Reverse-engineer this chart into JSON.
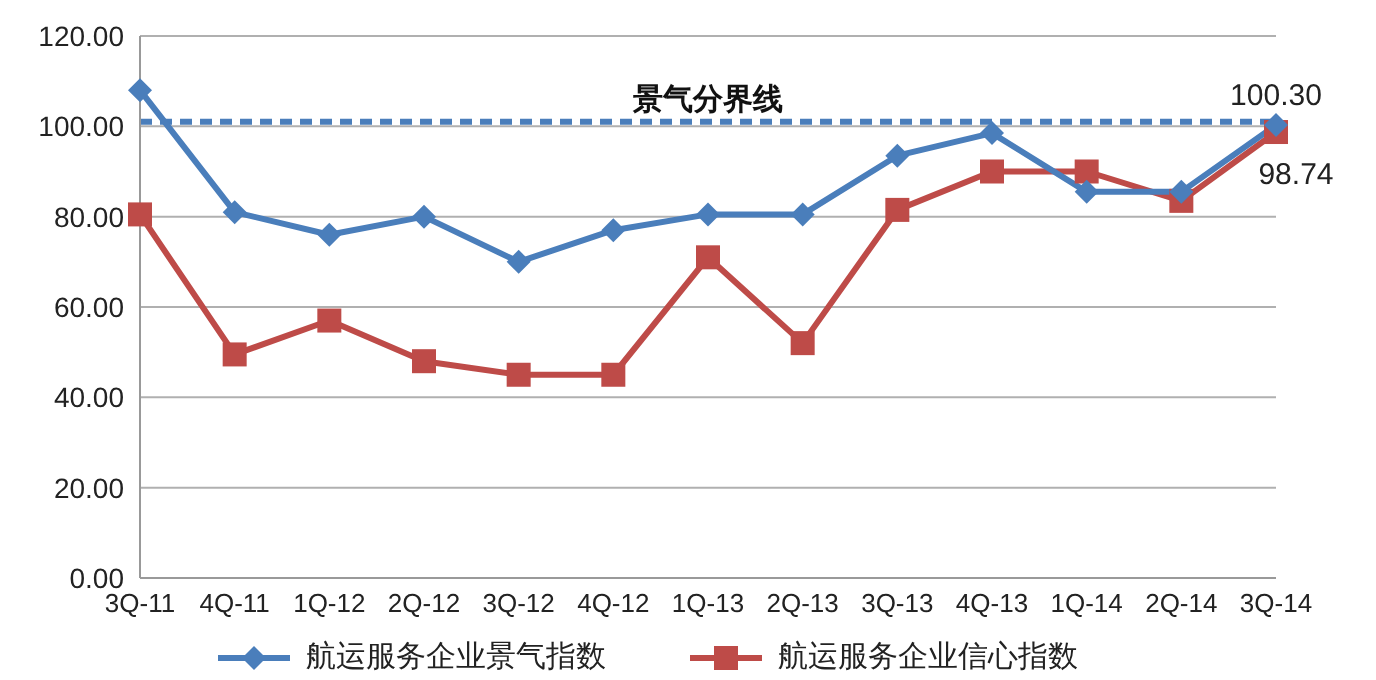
{
  "chart_data": {
    "type": "line",
    "categories": [
      "3Q-11",
      "4Q-11",
      "1Q-12",
      "2Q-12",
      "3Q-12",
      "4Q-12",
      "1Q-13",
      "2Q-13",
      "3Q-13",
      "4Q-13",
      "1Q-14",
      "2Q-14",
      "3Q-14"
    ],
    "series": [
      {
        "name": "航运服务企业景气指数",
        "color": "#4a7ebb",
        "marker": "diamond",
        "values": [
          108,
          81,
          76,
          80,
          70,
          77,
          80.5,
          80.5,
          93.5,
          98.5,
          85.5,
          85.5,
          100.3
        ],
        "value_labels": [
          null,
          null,
          null,
          null,
          null,
          null,
          null,
          null,
          null,
          null,
          null,
          null,
          "100.30"
        ]
      },
      {
        "name": "航运服务企业信心指数",
        "color": "#be4b48",
        "marker": "square",
        "values": [
          80.5,
          49.5,
          57,
          48,
          45,
          45,
          71,
          52,
          81.5,
          90,
          90,
          83.5,
          98.74
        ],
        "value_labels": [
          null,
          null,
          null,
          null,
          null,
          null,
          null,
          null,
          null,
          null,
          null,
          null,
          "98.74"
        ]
      }
    ],
    "ylim": [
      0,
      120
    ],
    "yticks": [
      {
        "value": 0,
        "label": "0.00"
      },
      {
        "value": 20,
        "label": "20.00"
      },
      {
        "value": 40,
        "label": "40.00"
      },
      {
        "value": 60,
        "label": "60.00"
      },
      {
        "value": 80,
        "label": "80.00"
      },
      {
        "value": 100,
        "label": "100.00"
      },
      {
        "value": 120,
        "label": "120.00"
      }
    ],
    "grid": "y",
    "legend": "bottom",
    "ref_lines": [
      {
        "axis": "y",
        "value": 101,
        "label": "景气分界线",
        "color": "#4a7ebb",
        "line_style": "dashed"
      }
    ]
  }
}
